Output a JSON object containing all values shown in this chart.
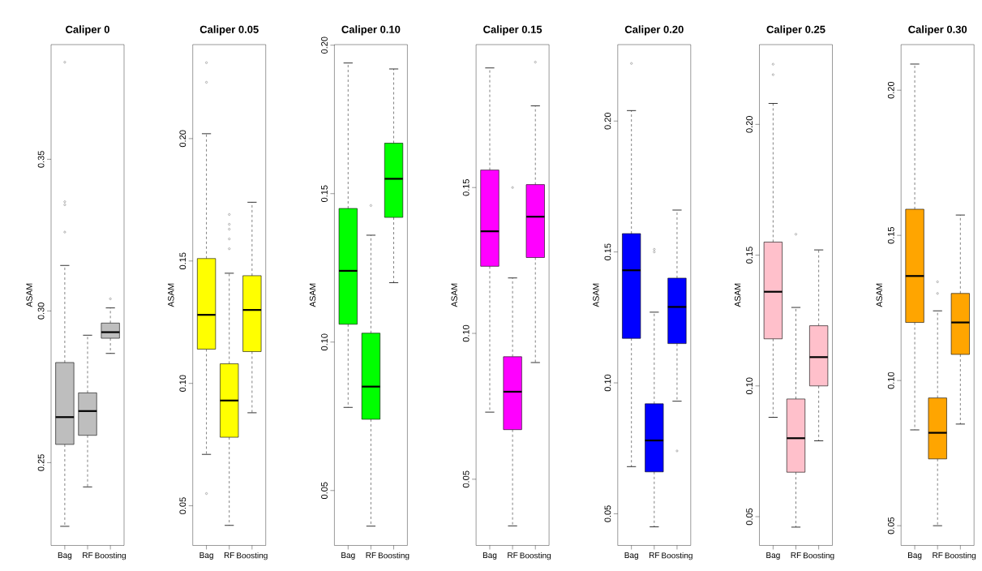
{
  "chart_data": [
    {
      "type": "box",
      "title": "Caliper 0",
      "ylabel": "ASAM",
      "categories": [
        "Bag",
        "RF",
        "Boosting"
      ],
      "ylim": [
        0.2227,
        0.3878
      ],
      "yticks": [
        0.25,
        {
          "value": 0.3,
          "label": "0.30"
        },
        0.35
      ],
      "series": [
        {
          "color": "#bebebe",
          "boxes": [
            {
              "low": 0.229,
              "q1": 0.256,
              "median": 0.265,
              "q3": 0.283,
              "high": 0.315,
              "outliers": [
                0.382,
                0.336,
                0.335,
                0.326
              ]
            },
            {
              "low": 0.242,
              "q1": 0.259,
              "median": 0.267,
              "q3": 0.273,
              "high": 0.292
            },
            {
              "low": 0.286,
              "q1": 0.291,
              "median": 0.293,
              "q3": 0.296,
              "high": 0.301,
              "outliers": [
                0.304
              ]
            }
          ]
        }
      ]
    },
    {
      "type": "box",
      "title": "Caliper 0.05",
      "ylabel": "ASAM",
      "categories": [
        "Bag",
        "RF",
        "Boosting"
      ],
      "ylim": [
        0.0338,
        0.2384
      ],
      "yticks": [
        0.05,
        {
          "value": 0.1,
          "label": "0.10"
        },
        0.15,
        {
          "value": 0.2,
          "label": "0.20"
        }
      ],
      "series": [
        {
          "color": "#ffff00",
          "boxes": [
            {
              "low": 0.071,
              "q1": 0.114,
              "median": 0.128,
              "q3": 0.151,
              "high": 0.202,
              "outliers": [
                0.231,
                0.223,
                0.055
              ]
            },
            {
              "low": 0.042,
              "q1": 0.078,
              "median": 0.093,
              "q3": 0.108,
              "high": 0.145,
              "outliers": [
                0.169,
                0.165,
                0.163,
                0.159,
                0.155
              ]
            },
            {
              "low": 0.088,
              "q1": 0.113,
              "median": 0.13,
              "q3": 0.144,
              "high": 0.174
            }
          ]
        }
      ]
    },
    {
      "type": "box",
      "title": "Caliper 0.10",
      "ylabel": "ASAM",
      "categories": [
        "Bag",
        "RF",
        "Boosting"
      ],
      "ylim": [
        0.0315,
        0.2002
      ],
      "yticks": [
        0.05,
        {
          "value": 0.1,
          "label": "0.10"
        },
        0.15,
        {
          "value": 0.2,
          "label": "0.20"
        }
      ],
      "series": [
        {
          "color": "#00ff00",
          "boxes": [
            {
              "low": 0.078,
              "q1": 0.106,
              "median": 0.124,
              "q3": 0.145,
              "high": 0.194
            },
            {
              "low": 0.038,
              "q1": 0.074,
              "median": 0.085,
              "q3": 0.103,
              "high": 0.136,
              "outliers": [
                0.146
              ]
            },
            {
              "low": 0.12,
              "q1": 0.142,
              "median": 0.155,
              "q3": 0.167,
              "high": 0.192
            }
          ]
        }
      ]
    },
    {
      "type": "box",
      "title": "Caliper 0.15",
      "ylabel": "ASAM",
      "categories": [
        "Bag",
        "RF",
        "Boosting"
      ],
      "ylim": [
        0.0273,
        0.199
      ],
      "yticks": [
        0.05,
        {
          "value": 0.1,
          "label": "0.10"
        },
        0.15
      ],
      "series": [
        {
          "color": "#ff00ff",
          "boxes": [
            {
              "low": 0.073,
              "q1": 0.123,
              "median": 0.135,
              "q3": 0.156,
              "high": 0.191
            },
            {
              "low": 0.034,
              "q1": 0.067,
              "median": 0.08,
              "q3": 0.092,
              "high": 0.119,
              "outliers": [
                0.15
              ]
            },
            {
              "low": 0.09,
              "q1": 0.126,
              "median": 0.14,
              "q3": 0.151,
              "high": 0.178,
              "outliers": [
                0.193
              ]
            }
          ]
        }
      ]
    },
    {
      "type": "box",
      "title": "Caliper 0.20",
      "ylabel": "ASAM",
      "categories": [
        "Bag",
        "RF",
        "Boosting"
      ],
      "ylim": [
        0.0379,
        0.2292
      ],
      "yticks": [
        0.05,
        {
          "value": 0.1,
          "label": "0.10"
        },
        0.15,
        {
          "value": 0.2,
          "label": "0.20"
        }
      ],
      "series": [
        {
          "color": "#0000ff",
          "boxes": [
            {
              "low": 0.068,
              "q1": 0.117,
              "median": 0.143,
              "q3": 0.157,
              "high": 0.204,
              "outliers": [
                0.222
              ]
            },
            {
              "low": 0.045,
              "q1": 0.066,
              "median": 0.078,
              "q3": 0.092,
              "high": 0.127,
              "outliers": [
                0.151,
                0.15
              ]
            },
            {
              "low": 0.093,
              "q1": 0.115,
              "median": 0.129,
              "q3": 0.14,
              "high": 0.166,
              "outliers": [
                0.074
              ]
            }
          ]
        }
      ]
    },
    {
      "type": "box",
      "title": "Caliper 0.25",
      "ylabel": "ASAM",
      "categories": [
        "Bag",
        "RF",
        "Boosting"
      ],
      "ylim": [
        0.039,
        0.2305
      ],
      "yticks": [
        0.05,
        {
          "value": 0.1,
          "label": "0.10"
        },
        0.15,
        {
          "value": 0.2,
          "label": "0.20"
        }
      ],
      "series": [
        {
          "color": "#ffc0cb",
          "boxes": [
            {
              "low": 0.088,
              "q1": 0.118,
              "median": 0.136,
              "q3": 0.155,
              "high": 0.208,
              "outliers": [
                0.223,
                0.219
              ]
            },
            {
              "low": 0.046,
              "q1": 0.067,
              "median": 0.08,
              "q3": 0.095,
              "high": 0.13,
              "outliers": [
                0.158
              ]
            },
            {
              "low": 0.079,
              "q1": 0.1,
              "median": 0.111,
              "q3": 0.123,
              "high": 0.152
            }
          ]
        }
      ]
    },
    {
      "type": "box",
      "title": "Caliper 0.30",
      "ylabel": "ASAM",
      "categories": [
        "Bag",
        "RF",
        "Boosting"
      ],
      "ylim": [
        0.0432,
        0.2157
      ],
      "yticks": [
        0.05,
        {
          "value": 0.1,
          "label": "0.10"
        },
        0.15,
        {
          "value": 0.2,
          "label": "0.20"
        }
      ],
      "series": [
        {
          "color": "#ffa500",
          "boxes": [
            {
              "low": 0.083,
              "q1": 0.12,
              "median": 0.136,
              "q3": 0.159,
              "high": 0.209
            },
            {
              "low": 0.05,
              "q1": 0.073,
              "median": 0.082,
              "q3": 0.094,
              "high": 0.124,
              "outliers": [
                0.134,
                0.13
              ]
            },
            {
              "low": 0.085,
              "q1": 0.109,
              "median": 0.12,
              "q3": 0.13,
              "high": 0.157
            }
          ]
        }
      ]
    }
  ]
}
